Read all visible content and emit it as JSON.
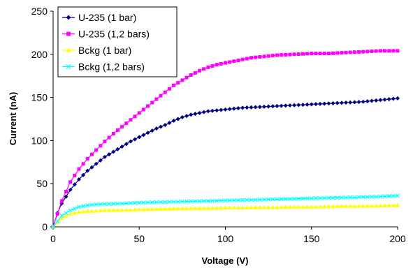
{
  "chart_data": {
    "type": "line",
    "title": "",
    "xlabel": "Voltage (V)",
    "ylabel": "Current (nA)",
    "xlim": [
      0,
      200
    ],
    "ylim": [
      0,
      250
    ],
    "x_ticks": [
      0,
      50,
      100,
      150,
      200
    ],
    "y_ticks": [
      0,
      50,
      100,
      150,
      200,
      250
    ],
    "grid": false,
    "legend_position": "top-left",
    "series": [
      {
        "name": "U-235 (1 bar)",
        "color": "#000080",
        "marker": "diamond",
        "x": [
          0,
          2.5,
          5,
          10,
          15,
          20,
          25,
          30,
          35,
          40,
          45,
          50,
          55,
          60,
          65,
          70,
          75,
          80,
          85,
          90,
          95,
          100,
          110,
          120,
          130,
          140,
          150,
          160,
          170,
          180,
          190,
          200
        ],
        "y": [
          0,
          16,
          27,
          43,
          55,
          65,
          73,
          81,
          87,
          93,
          99,
          104,
          109,
          114,
          118,
          123,
          127,
          130,
          132,
          134,
          135,
          136,
          138,
          139,
          140,
          141,
          142,
          143,
          144,
          145,
          147,
          149
        ]
      },
      {
        "name": "U-235 (1,2 bars)",
        "color": "#ff00ff",
        "marker": "square",
        "x": [
          0,
          5,
          10,
          15,
          20,
          25,
          30,
          35,
          40,
          45,
          50,
          55,
          60,
          65,
          70,
          75,
          80,
          85,
          90,
          95,
          100,
          105,
          110,
          115,
          120,
          125,
          130,
          140,
          150,
          160,
          170,
          180,
          190,
          200
        ],
        "y": [
          0,
          30,
          52,
          67,
          79,
          89,
          99,
          108,
          116,
          124,
          132,
          140,
          148,
          156,
          164,
          170,
          176,
          181,
          185,
          188,
          190,
          192,
          194,
          196,
          197,
          198,
          199,
          200,
          201,
          201,
          202,
          203,
          204,
          204
        ]
      },
      {
        "name": "Bckg (1 bar)",
        "color": "#ffff00",
        "marker": "triangle",
        "x": [
          0,
          5,
          10,
          15,
          20,
          30,
          40,
          50,
          60,
          70,
          80,
          90,
          100,
          110,
          120,
          130,
          140,
          150,
          160,
          170,
          180,
          190,
          200
        ],
        "y": [
          0,
          10,
          15,
          17,
          18,
          19,
          19.5,
          20,
          20.5,
          21,
          21.5,
          21.5,
          22,
          22,
          22.5,
          22.5,
          23,
          23,
          23.5,
          24,
          24,
          24.5,
          25
        ]
      },
      {
        "name": "Bckg (1,2 bars)",
        "color": "#00ffff",
        "marker": "cross",
        "x": [
          0,
          5,
          10,
          15,
          20,
          25,
          30,
          40,
          50,
          60,
          70,
          80,
          90,
          100,
          110,
          120,
          130,
          140,
          150,
          160,
          170,
          180,
          190,
          200
        ],
        "y": [
          0,
          13,
          19,
          23,
          25,
          26,
          26.5,
          27,
          28,
          28.5,
          29,
          29.5,
          30,
          30.5,
          31,
          31.5,
          32,
          32.5,
          33,
          33.5,
          34,
          34.5,
          35,
          36
        ]
      }
    ]
  }
}
